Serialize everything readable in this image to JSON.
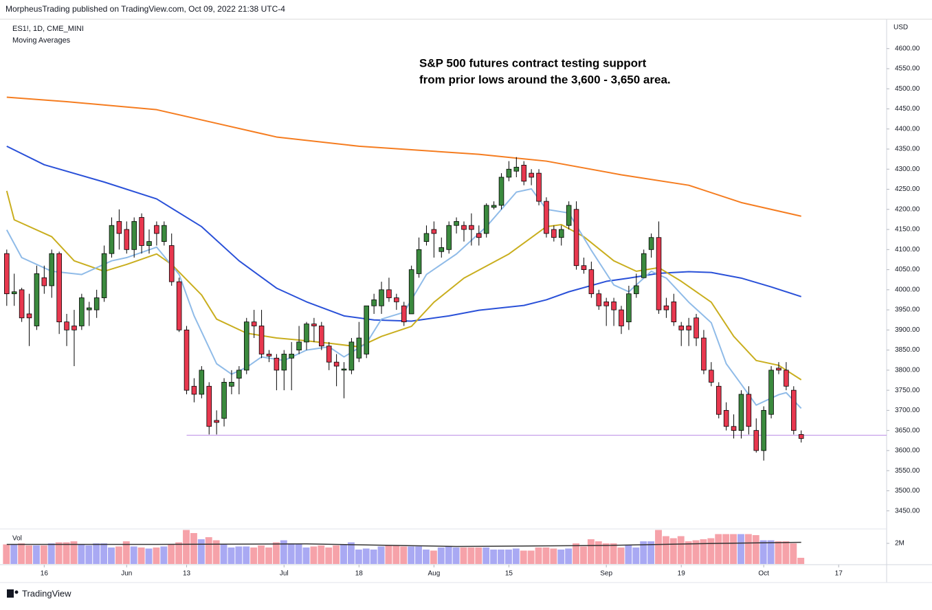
{
  "header": "MorpheusTrading published on TradingView.com, Oct 09, 2022 21:38 UTC-4",
  "footer": "TradingView",
  "chart_data": {
    "type": "candlestick",
    "symbol": "ES1!, 1D, CME_MINI",
    "indicator": "Moving Averages",
    "annotation": [
      "S&P 500 futures contract testing support",
      "from prior lows around the 3,600 - 3,650 area."
    ],
    "currency": "USD",
    "xlim": [
      -0.9,
      117.4
    ],
    "xticks": [
      {
        "value": 5,
        "label": "16"
      },
      {
        "value": 16,
        "label": "Jun"
      },
      {
        "value": 24,
        "label": "13"
      },
      {
        "value": 37,
        "label": "Jul"
      },
      {
        "value": 47,
        "label": "18"
      },
      {
        "value": 57,
        "label": "Aug"
      },
      {
        "value": 67,
        "label": "15"
      },
      {
        "value": 80,
        "label": "Sep"
      },
      {
        "value": 90,
        "label": "19"
      },
      {
        "value": 101,
        "label": "Oct"
      },
      {
        "value": 111,
        "label": "17"
      }
    ],
    "ylim": [
      3405,
      4673
    ],
    "yticks": [
      {
        "value": 4600,
        "label": "4600.00"
      },
      {
        "value": 4550,
        "label": "4550.00"
      },
      {
        "value": 4500,
        "label": "4500.00"
      },
      {
        "value": 4450,
        "label": "4450.00"
      },
      {
        "value": 4400,
        "label": "4400.00"
      },
      {
        "value": 4350,
        "label": "4350.00"
      },
      {
        "value": 4300,
        "label": "4300.00"
      },
      {
        "value": 4250,
        "label": "4250.00"
      },
      {
        "value": 4200,
        "label": "4200.00"
      },
      {
        "value": 4150,
        "label": "4150.00"
      },
      {
        "value": 4100,
        "label": "4100.00"
      },
      {
        "value": 4050,
        "label": "4050.00"
      },
      {
        "value": 4000,
        "label": "4000.00"
      },
      {
        "value": 3950,
        "label": "3950.00"
      },
      {
        "value": 3900,
        "label": "3900.00"
      },
      {
        "value": 3850,
        "label": "3850.00"
      },
      {
        "value": 3800,
        "label": "3800.00"
      },
      {
        "value": 3750,
        "label": "3750.00"
      },
      {
        "value": 3700,
        "label": "3700.00"
      },
      {
        "value": 3650,
        "label": "3650.00"
      },
      {
        "value": 3600,
        "label": "3600.00"
      },
      {
        "value": 3550,
        "label": "3550.00"
      },
      {
        "value": 3500,
        "label": "3500.00"
      },
      {
        "value": 3450,
        "label": "3450.00"
      }
    ],
    "open": [
      4090,
      3990,
      4000,
      3940,
      3910,
      4030,
      4010,
      4090,
      3920,
      3910,
      3910,
      3950,
      3950,
      3980,
      4090,
      4170,
      4150,
      4100,
      4180,
      4110,
      4160,
      4120,
      4110,
      4020,
      3900,
      3760,
      3740,
      3760,
      3675,
      3680,
      3760,
      3780,
      3800,
      3920,
      3910,
      3840,
      3830,
      3800,
      3830,
      3850,
      3870,
      3915,
      3910,
      3860,
      3820,
      3800,
      3800,
      3830,
      3840,
      3960,
      3960,
      4000,
      3980,
      3960,
      3940,
      4040,
      4120,
      4150,
      4095,
      4100,
      4160,
      4160,
      4160,
      4140,
      4140,
      4205,
      4210,
      4280,
      4295,
      4310,
      4290,
      4290,
      4220,
      4150,
      4130,
      4160,
      4200,
      4060,
      4050,
      3990,
      3970,
      3970,
      3950,
      3920,
      3990,
      4030,
      4100,
      4130,
      3960,
      3970,
      3910,
      3910,
      3930,
      3880,
      3800,
      3760,
      3700,
      3660,
      3650,
      3740,
      3650,
      3600,
      3690,
      3805,
      3800,
      3750,
      3640
    ],
    "high": [
      4100,
      4040,
      4005,
      3990,
      4060,
      4060,
      4100,
      4095,
      3940,
      3950,
      3990,
      3970,
      4000,
      4110,
      4180,
      4200,
      4170,
      4180,
      4190,
      4150,
      4170,
      4170,
      4140,
      4030,
      3910,
      3780,
      3810,
      3770,
      3700,
      3780,
      3800,
      3810,
      3930,
      3950,
      3950,
      3850,
      3840,
      3850,
      3870,
      3910,
      3920,
      3930,
      3920,
      3870,
      3840,
      3820,
      3880,
      3920,
      3960,
      3990,
      4020,
      4030,
      3990,
      3970,
      4060,
      4130,
      4160,
      4170,
      4130,
      4170,
      4180,
      4170,
      4190,
      4160,
      4215,
      4220,
      4290,
      4320,
      4330,
      4320,
      4300,
      4300,
      4230,
      4160,
      4160,
      4220,
      4220,
      4080,
      4070,
      4000,
      3980,
      3980,
      3960,
      4010,
      4040,
      4100,
      4140,
      4170,
      3980,
      3990,
      3920,
      3930,
      3940,
      3900,
      3820,
      3770,
      3720,
      3690,
      3750,
      3760,
      3680,
      3710,
      3810,
      3820,
      3820,
      3760,
      3650
    ],
    "low": [
      3960,
      3960,
      3920,
      3860,
      3900,
      3990,
      3980,
      3890,
      3860,
      3810,
      3900,
      3910,
      3930,
      3970,
      4080,
      4100,
      4090,
      4080,
      4090,
      4090,
      4110,
      4110,
      4010,
      3895,
      3740,
      3720,
      3730,
      3640,
      3640,
      3660,
      3740,
      3740,
      3790,
      3880,
      3830,
      3820,
      3750,
      3750,
      3750,
      3840,
      3850,
      3870,
      3850,
      3800,
      3760,
      3730,
      3790,
      3820,
      3830,
      3940,
      3940,
      3970,
      3950,
      3910,
      3940,
      4030,
      4110,
      4080,
      4080,
      4090,
      4140,
      4120,
      4110,
      4110,
      4130,
      4200,
      4200,
      4270,
      4280,
      4260,
      4260,
      4210,
      4130,
      4120,
      4110,
      4150,
      4050,
      4040,
      3980,
      3950,
      3910,
      3910,
      3890,
      3900,
      3980,
      4030,
      4080,
      3940,
      3930,
      3910,
      3860,
      3860,
      3860,
      3790,
      3760,
      3680,
      3650,
      3630,
      3630,
      3640,
      3595,
      3575,
      3680,
      3790,
      3750,
      3640,
      3620
    ],
    "close": [
      3990,
      3995,
      3930,
      3930,
      4040,
      4010,
      4090,
      3920,
      3900,
      3900,
      3980,
      3955,
      3980,
      4090,
      4160,
      4140,
      4100,
      4170,
      4110,
      4120,
      4140,
      4160,
      4020,
      3900,
      3750,
      3740,
      3800,
      3660,
      3670,
      3770,
      3770,
      3800,
      3920,
      3910,
      3840,
      3835,
      3800,
      3840,
      3840,
      3870,
      3915,
      3910,
      3860,
      3820,
      3810,
      3803,
      3870,
      3880,
      3960,
      3975,
      4000,
      3980,
      3970,
      3920,
      4050,
      4100,
      4140,
      4140,
      4105,
      4160,
      4170,
      4150,
      4150,
      4130,
      4210,
      4210,
      4280,
      4300,
      4305,
      4270,
      4280,
      4220,
      4140,
      4130,
      4150,
      4210,
      4060,
      4050,
      3990,
      3960,
      3960,
      3950,
      3910,
      3990,
      4010,
      4090,
      4130,
      3950,
      3950,
      3920,
      3900,
      3900,
      3880,
      3800,
      3770,
      3690,
      3660,
      3650,
      3740,
      3660,
      3600,
      3700,
      3800,
      3800,
      3760,
      3650,
      3630
    ],
    "up_color": "#3b8a3e",
    "down_color": "#e8384f",
    "series": [
      {
        "color": "#f57c1f",
        "x": [
          0,
          8,
          20,
          28,
          36,
          47,
          63,
          72,
          82,
          91,
          98,
          106
        ],
        "values": [
          4479,
          4468,
          4448,
          4414,
          4380,
          4357,
          4337,
          4320,
          4286,
          4260,
          4217,
          4183
        ]
      },
      {
        "color": "#2950d8",
        "x": [
          0,
          5,
          13,
          20,
          26,
          31,
          36,
          40,
          45,
          49,
          54,
          59,
          63,
          69,
          72,
          75,
          80,
          83,
          87,
          91,
          94,
          98,
          102,
          106
        ],
        "values": [
          4357,
          4311,
          4268,
          4226,
          4157,
          4072,
          4004,
          3970,
          3935,
          3925,
          3922,
          3935,
          3949,
          3961,
          3975,
          3995,
          4021,
          4029,
          4041,
          4045,
          4043,
          4029,
          4007,
          3983
        ]
      },
      {
        "color": "#c9ae1e",
        "x": [
          0,
          1,
          6,
          9,
          13,
          16,
          20,
          22,
          26,
          28,
          32,
          36,
          39,
          43,
          47,
          50,
          54,
          57,
          61,
          67,
          72,
          74,
          77,
          81,
          84,
          87,
          90,
          94,
          97,
          100,
          103,
          106
        ],
        "values": [
          4246,
          4174,
          4132,
          4072,
          4046,
          4063,
          4089,
          4063,
          3987,
          3927,
          3892,
          3880,
          3875,
          3867,
          3858,
          3884,
          3909,
          3969,
          4029,
          4089,
          4157,
          4162,
          4132,
          4072,
          4046,
          4055,
          4021,
          3969,
          3884,
          3824,
          3812,
          3776
        ]
      },
      {
        "color": "#8fbbe8",
        "x": [
          0,
          2,
          6,
          10,
          14,
          16,
          20,
          23,
          25,
          28,
          30,
          32,
          34,
          37,
          40,
          43,
          45,
          48,
          50,
          53,
          56,
          60,
          64,
          68,
          70,
          72,
          75,
          78,
          81,
          83,
          86,
          88,
          91,
          94,
          96,
          98,
          100,
          103,
          104,
          106
        ],
        "values": [
          4149,
          4080,
          4046,
          4038,
          4072,
          4080,
          4106,
          4038,
          3935,
          3816,
          3790,
          3807,
          3833,
          3824,
          3850,
          3858,
          3833,
          3867,
          3927,
          3944,
          4038,
          4089,
          4157,
          4243,
          4251,
          4200,
          4191,
          4098,
          4012,
          3995,
          4046,
          4029,
          3969,
          3918,
          3816,
          3765,
          3713,
          3739,
          3744,
          3705
        ]
      }
    ],
    "support_line": {
      "value": 3638,
      "x": 24,
      "color": "#b98ae6"
    },
    "volume": {
      "label": "Vol",
      "ylim": [
        0,
        3400000
      ],
      "yticks": [
        {
          "value": 2000000,
          "label": "2M"
        }
      ],
      "up_color": "#a9a9f3",
      "down_color": "#f6a2a9",
      "values": [
        1900000,
        1900000,
        2000000,
        1800000,
        1800000,
        1800000,
        2000000,
        2100000,
        2100000,
        2200000,
        1900000,
        1800000,
        2000000,
        2000000,
        1600000,
        1700000,
        2200000,
        1700000,
        1600000,
        1500000,
        1600000,
        1700000,
        1900000,
        2100000,
        3300000,
        3000000,
        2400000,
        2600000,
        2300000,
        1900000,
        1600000,
        1700000,
        1700000,
        1600000,
        1800000,
        1600000,
        2100000,
        2300000,
        2000000,
        1900000,
        1600000,
        1700000,
        1800000,
        1600000,
        1800000,
        1900000,
        2100000,
        1400000,
        1500000,
        1400000,
        1700000,
        1800000,
        1800000,
        1700000,
        1700000,
        1700000,
        1400000,
        1300000,
        1600000,
        1700000,
        1600000,
        1600000,
        1600000,
        1600000,
        1600000,
        1400000,
        1400000,
        1400000,
        1500000,
        1300000,
        1300000,
        1600000,
        1600000,
        1500000,
        1400000,
        1500000,
        2000000,
        1700000,
        2400000,
        2200000,
        2000000,
        2000000,
        1600000,
        1800000,
        1600000,
        2200000,
        2200000,
        3300000,
        2700000,
        2500000,
        2700000,
        2200000,
        2300000,
        2400000,
        2500000,
        2900000,
        2900000,
        2900000,
        2900000,
        2900000,
        2800000,
        2300000,
        2300000,
        2200000,
        2200000,
        2000000,
        600000
      ],
      "average": {
        "color": "#333333",
        "x": [
          0,
          20,
          40,
          60,
          80,
          95,
          106
        ],
        "values": [
          1900000,
          1900000,
          1950000,
          1700000,
          1800000,
          2000000,
          2100000
        ]
      }
    }
  }
}
